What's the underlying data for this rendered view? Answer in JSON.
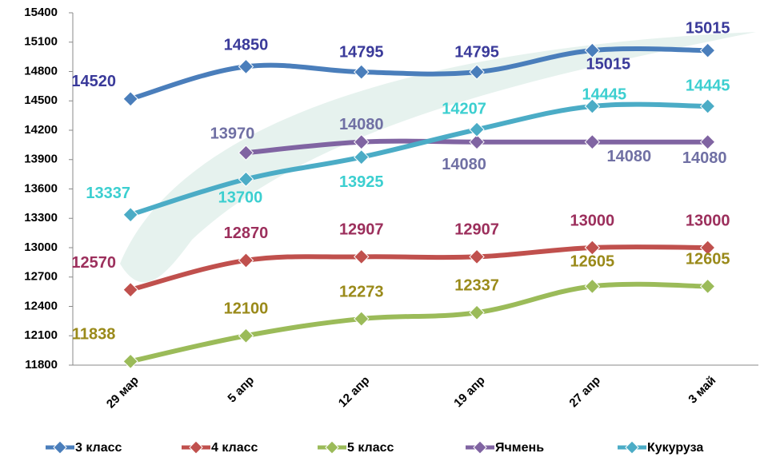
{
  "chart_data": {
    "type": "line",
    "categories": [
      "29 мар",
      "5 апр",
      "12 апр",
      "19 апр",
      "27 апр",
      "3 май"
    ],
    "series": [
      {
        "name": "3 класс",
        "color": "#4a7ebb",
        "label_color": "#3a3a9a",
        "values": [
          14520,
          14850,
          14795,
          14795,
          15015,
          15015
        ]
      },
      {
        "name": "4 класс",
        "color": "#c0504d",
        "label_color": "#9c2f5c",
        "values": [
          12570,
          12870,
          12907,
          12907,
          13000,
          13000
        ]
      },
      {
        "name": "5 класс",
        "color": "#9bbb59",
        "label_color": "#9a8a1a",
        "values": [
          11838,
          12100,
          12273,
          12337,
          12605,
          12605
        ]
      },
      {
        "name": "Ячмень",
        "color": "#8064a2",
        "label_color": "#7070a4",
        "values": [
          null,
          13970,
          14080,
          14080,
          14080,
          14080
        ]
      },
      {
        "name": "Кукуруза",
        "color": "#4bacc6",
        "label_color": "#3ccfd0",
        "values": [
          13337,
          13700,
          13925,
          14207,
          14445,
          14445
        ]
      }
    ],
    "ylim": [
      11800,
      15400
    ],
    "yticks": [
      11800,
      12100,
      12400,
      12700,
      13000,
      13300,
      13600,
      13900,
      14200,
      14500,
      14800,
      15100,
      15400
    ],
    "legend": "bottom"
  }
}
